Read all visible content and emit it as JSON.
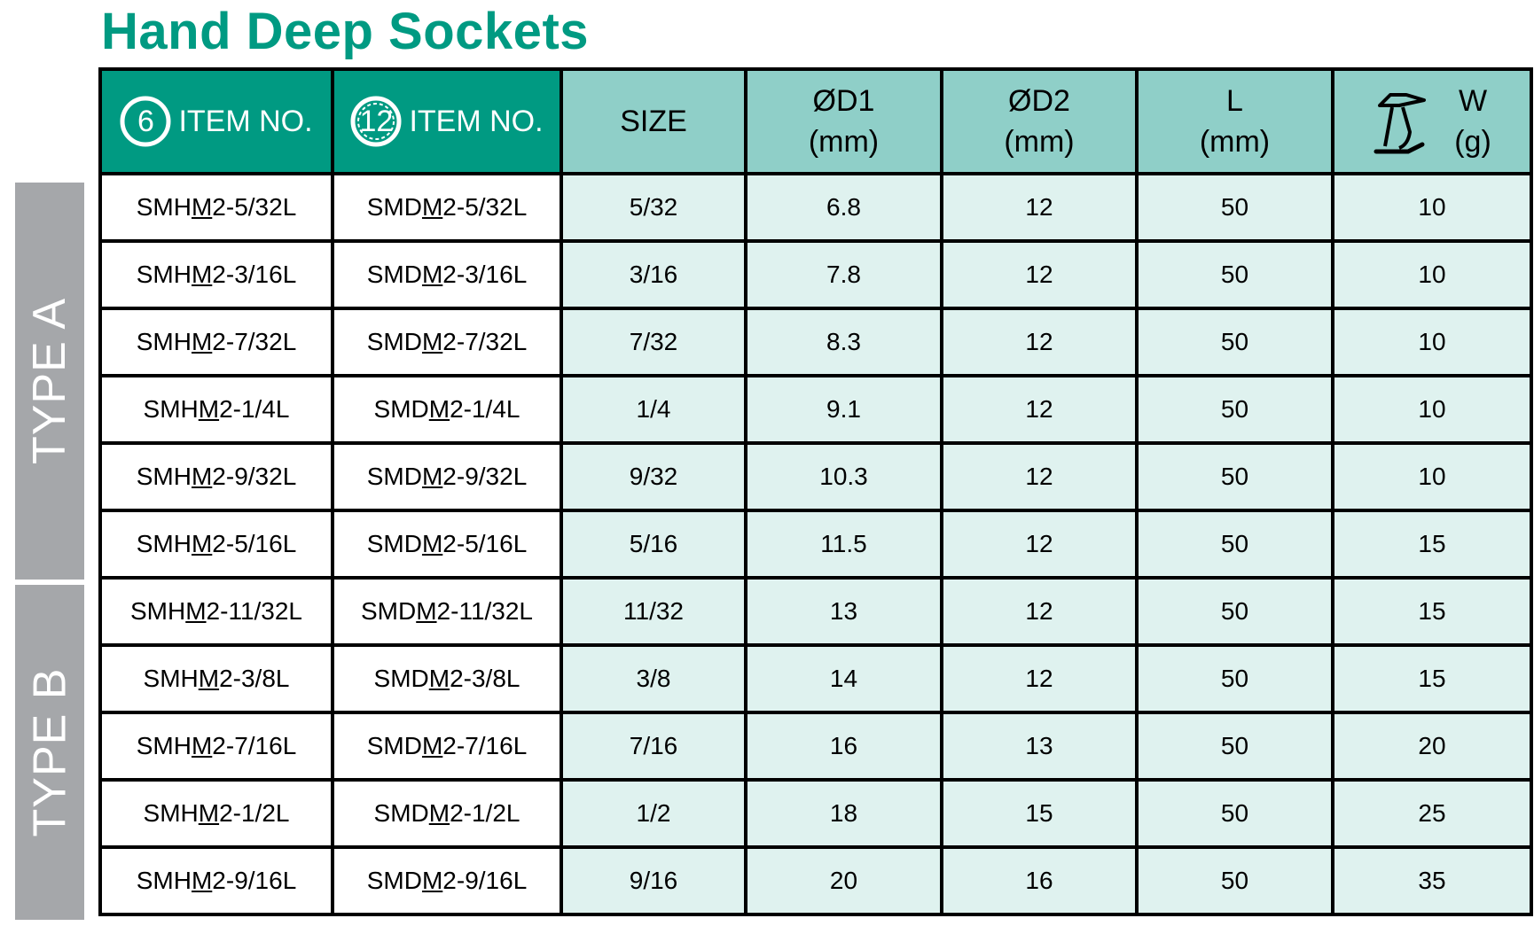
{
  "title": "Hand Deep Sockets",
  "types": {
    "a": "TYPE A",
    "b": "TYPE B"
  },
  "headers": {
    "hex_badge": "6",
    "hex_item": "ITEM NO.",
    "bi_badge": "12",
    "bi_item": "ITEM NO.",
    "size": "SIZE",
    "d1": "ØD1",
    "d1_unit": "(mm)",
    "d2": "ØD2",
    "d2_unit": "(mm)",
    "l": "L",
    "l_unit": "(mm)",
    "w": "W",
    "w_unit": "(g)",
    "weight_icon": "scale-icon"
  },
  "rows": [
    {
      "hex": "SMHM2-5/32L",
      "bi": "SMDM2-5/32L",
      "size": "5/32",
      "d1": "6.8",
      "d2": "12",
      "l": "50",
      "w": "10"
    },
    {
      "hex": "SMHM2-3/16L",
      "bi": "SMDM2-3/16L",
      "size": "3/16",
      "d1": "7.8",
      "d2": "12",
      "l": "50",
      "w": "10"
    },
    {
      "hex": "SMHM2-7/32L",
      "bi": "SMDM2-7/32L",
      "size": "7/32",
      "d1": "8.3",
      "d2": "12",
      "l": "50",
      "w": "10"
    },
    {
      "hex": "SMHM2-1/4L",
      "bi": "SMDM2-1/4L",
      "size": "1/4",
      "d1": "9.1",
      "d2": "12",
      "l": "50",
      "w": "10"
    },
    {
      "hex": "SMHM2-9/32L",
      "bi": "SMDM2-9/32L",
      "size": "9/32",
      "d1": "10.3",
      "d2": "12",
      "l": "50",
      "w": "10"
    },
    {
      "hex": "SMHM2-5/16L",
      "bi": "SMDM2-5/16L",
      "size": "5/16",
      "d1": "11.5",
      "d2": "12",
      "l": "50",
      "w": "15"
    },
    {
      "hex": "SMHM2-11/32L",
      "bi": "SMDM2-11/32L",
      "size": "11/32",
      "d1": "13",
      "d2": "12",
      "l": "50",
      "w": "15"
    },
    {
      "hex": "SMHM2-3/8L",
      "bi": "SMDM2-3/8L",
      "size": "3/8",
      "d1": "14",
      "d2": "12",
      "l": "50",
      "w": "15"
    },
    {
      "hex": "SMHM2-7/16L",
      "bi": "SMDM2-7/16L",
      "size": "7/16",
      "d1": "16",
      "d2": "13",
      "l": "50",
      "w": "20"
    },
    {
      "hex": "SMHM2-1/2L",
      "bi": "SMDM2-1/2L",
      "size": "1/2",
      "d1": "18",
      "d2": "15",
      "l": "50",
      "w": "25"
    },
    {
      "hex": "SMHM2-9/16L",
      "bi": "SMDM2-9/16L",
      "size": "9/16",
      "d1": "20",
      "d2": "16",
      "l": "50",
      "w": "35"
    }
  ],
  "colors": {
    "brand": "#009a82",
    "header_teal": "#8fcfc8",
    "cell_teal": "#dff2ef",
    "type_gray": "#a5a7aa",
    "divider": "#e8007a"
  }
}
